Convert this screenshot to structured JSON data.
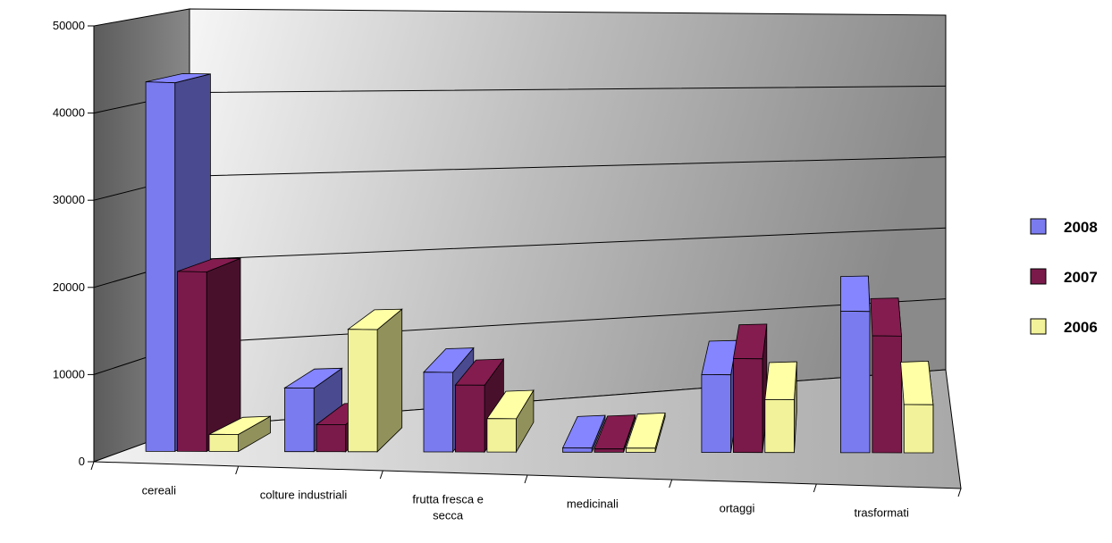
{
  "chart_data": {
    "type": "bar",
    "title": "",
    "xlabel": "",
    "ylabel": "",
    "ylim": [
      0,
      50000
    ],
    "yticks": [
      0,
      10000,
      20000,
      30000,
      40000,
      50000
    ],
    "yticks_text": [
      "0",
      "10000",
      "20000",
      "30000",
      "40000",
      "50000"
    ],
    "grid": true,
    "legend_position": "right",
    "categories": [
      [
        "cereali"
      ],
      [
        "colture industriali"
      ],
      [
        "frutta fresca e",
        "secca"
      ],
      [
        "medicinali"
      ],
      [
        "ortaggi"
      ],
      [
        "trasformati"
      ]
    ],
    "series": [
      {
        "name": "2008",
        "color": "#7b7bf0",
        "values": [
          43000,
          7500,
          9500,
          500,
          9500,
          17500
        ]
      },
      {
        "name": "2007",
        "color": "#7a1a4a",
        "values": [
          21000,
          3200,
          8000,
          400,
          11500,
          14500
        ]
      },
      {
        "name": "2006",
        "color": "#f2f29a",
        "values": [
          2000,
          14500,
          4000,
          500,
          6500,
          6000
        ]
      }
    ]
  }
}
